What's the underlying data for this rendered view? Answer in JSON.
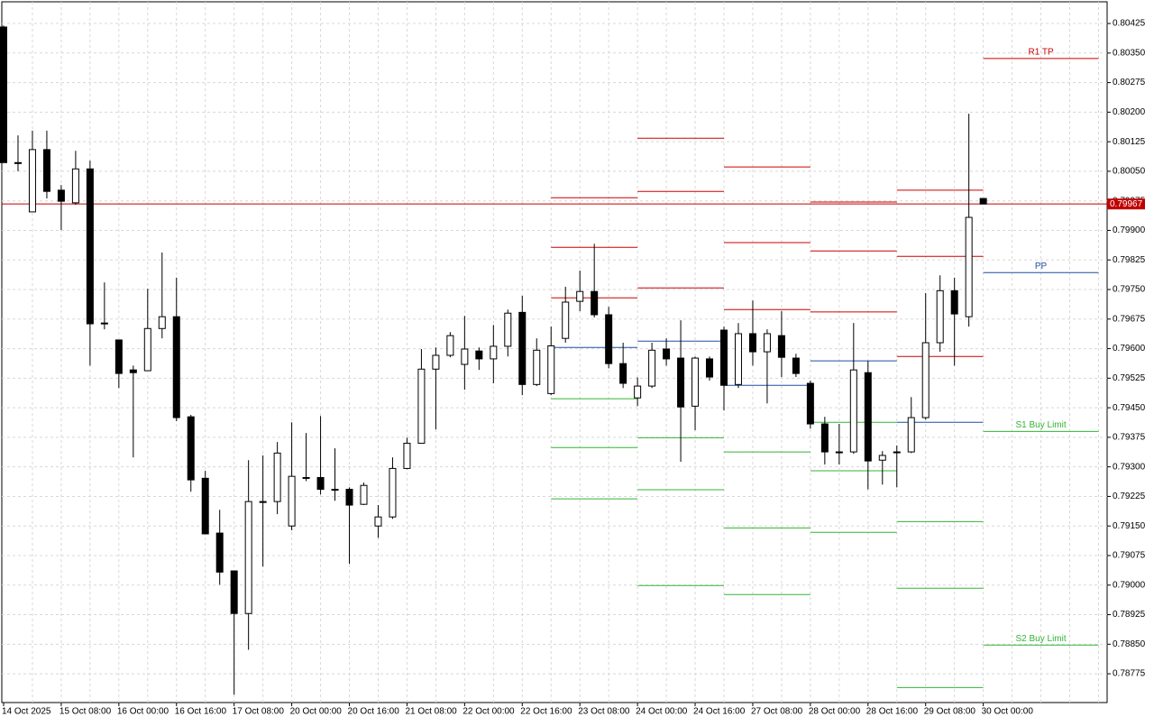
{
  "chart_data": {
    "type": "candlestick",
    "categories": [
      "14 Oct 2025",
      null,
      null,
      null,
      "15 Oct 08:00",
      null,
      null,
      null,
      "16 Oct 00:00",
      null,
      null,
      null,
      "16 Oct 16:00",
      null,
      null,
      null,
      "17 Oct 08:00",
      null,
      null,
      null,
      "20 Oct 00:00",
      null,
      null,
      null,
      "20 Oct 16:00",
      null,
      null,
      null,
      "21 Oct 08:00",
      null,
      null,
      null,
      "22 Oct 00:00",
      null,
      null,
      null,
      "22 Oct 16:00",
      null,
      null,
      null,
      "23 Oct 08:00",
      null,
      null,
      null,
      "24 Oct 00:00",
      null,
      null,
      null,
      "24 Oct 16:00",
      null,
      null,
      null,
      "27 Oct 08:00",
      null,
      null,
      null,
      "28 Oct 00:00",
      null,
      null,
      null,
      "28 Oct 16:00",
      null,
      null,
      null,
      "29 Oct 08:00",
      null,
      null,
      null,
      "30 Oct 00:00"
    ],
    "open": [
      0.80416,
      0.80072,
      0.79947,
      0.80105,
      0.80002,
      0.7997,
      0.80056,
      0.79665,
      0.79622,
      0.79546,
      0.79544,
      0.79651,
      0.79681,
      0.79427,
      0.79271,
      0.79132,
      0.79036,
      0.78928,
      0.79212,
      0.79212,
      0.7915,
      0.79273,
      0.79273,
      0.79243,
      0.79243,
      0.79205,
      0.7915,
      0.79173,
      0.79296,
      0.7936,
      0.79548,
      0.79583,
      0.7956,
      0.79594,
      0.79574,
      0.79606,
      0.79692,
      0.79509,
      0.79486,
      0.79626,
      0.7972,
      0.79745,
      0.79686,
      0.79562,
      0.79475,
      0.79505,
      0.79599,
      0.79576,
      0.79454,
      0.79574,
      0.79647,
      0.79509,
      0.79638,
      0.79592,
      0.79633,
      0.79576,
      0.79512,
      0.79409,
      0.79338,
      0.79338,
      0.79539,
      0.79317,
      0.79338,
      0.79338,
      0.79425,
      0.79615,
      0.79747,
      0.79681,
      0.79981
    ],
    "high": [
      0.8042,
      0.80141,
      0.80153,
      0.80153,
      0.80015,
      0.80102,
      0.80077,
      0.79768,
      0.79622,
      0.79557,
      0.79752,
      0.79844,
      0.7978,
      0.79432,
      0.7929,
      0.79191,
      0.79036,
      0.79317,
      0.79329,
      0.79363,
      0.79413,
      0.79386,
      0.79429,
      0.79347,
      0.79248,
      0.7926,
      0.79203,
      0.79324,
      0.79374,
      0.79599,
      0.79603,
      0.79642,
      0.79683,
      0.79603,
      0.7966,
      0.79699,
      0.79734,
      0.79626,
      0.79656,
      0.79757,
      0.79798,
      0.79866,
      0.79706,
      0.79615,
      0.79527,
      0.79615,
      0.79626,
      0.79672,
      0.7958,
      0.7958,
      0.79656,
      0.79665,
      0.79722,
      0.79649,
      0.79695,
      0.79587,
      0.79519,
      0.79427,
      0.79409,
      0.79665,
      0.79569,
      0.7934,
      0.79354,
      0.79477,
      0.79741,
      0.79786,
      0.7978,
      0.80196,
      0.79981
    ],
    "low": [
      0.80072,
      0.8005,
      0.79947,
      0.79981,
      0.79901,
      0.79965,
      0.79557,
      0.79649,
      0.795,
      0.79324,
      0.79544,
      0.79626,
      0.79416,
      0.79237,
      0.7913,
      0.79001,
      0.78722,
      0.78836,
      0.79047,
      0.7918,
      0.79139,
      0.79264,
      0.7923,
      0.79214,
      0.79054,
      0.79203,
      0.7912,
      0.79168,
      0.79294,
      0.7936,
      0.79395,
      0.79578,
      0.79496,
      0.79546,
      0.79512,
      0.7958,
      0.79482,
      0.79505,
      0.79482,
      0.79615,
      0.79695,
      0.79679,
      0.7955,
      0.795,
      0.79454,
      0.795,
      0.79557,
      0.79313,
      0.79393,
      0.79519,
      0.79443,
      0.795,
      0.79557,
      0.79461,
      0.79528,
      0.79528,
      0.79397,
      0.79306,
      0.79306,
      0.79333,
      0.79243,
      0.79255,
      0.79248,
      0.79335,
      0.7942,
      0.79592,
      0.79557,
      0.79656,
      0.79967
    ],
    "close": [
      0.80072,
      0.80072,
      0.80105,
      0.79999,
      0.79974,
      0.80056,
      0.79663,
      0.79665,
      0.79537,
      0.79539,
      0.79651,
      0.79681,
      0.79425,
      0.79267,
      0.7913,
      0.79033,
      0.78928,
      0.79212,
      0.79212,
      0.79335,
      0.79276,
      0.79273,
      0.79243,
      0.79243,
      0.79203,
      0.79253,
      0.79173,
      0.79296,
      0.7936,
      0.79548,
      0.79583,
      0.79633,
      0.79599,
      0.79574,
      0.79606,
      0.7969,
      0.79509,
      0.79596,
      0.79607,
      0.79718,
      0.79745,
      0.79686,
      0.79562,
      0.79512,
      0.79505,
      0.79596,
      0.79574,
      0.79452,
      0.79576,
      0.79528,
      0.79507,
      0.79638,
      0.79592,
      0.79638,
      0.79578,
      0.79537,
      0.79409,
      0.79338,
      0.79338,
      0.79546,
      0.79315,
      0.79329,
      0.79338,
      0.79425,
      0.79615,
      0.79747,
      0.79688,
      0.79933,
      0.79967
    ],
    "up_color": "#ffffff",
    "down_color": "#000000",
    "ylim": [
      0.78702,
      0.8048
    ],
    "yticks": [
      0.80425,
      {
        "value": 0.8035,
        "label": "0.80350"
      },
      0.80275,
      {
        "value": 0.802,
        "label": "0.80200"
      },
      0.80125,
      {
        "value": 0.8005,
        "label": "0.80050"
      },
      0.79975,
      {
        "value": 0.799,
        "label": "0.79900"
      },
      0.79825,
      {
        "value": 0.7975,
        "label": "0.79750"
      },
      0.79675,
      {
        "value": 0.796,
        "label": "0.79600"
      },
      0.79525,
      {
        "value": 0.7945,
        "label": "0.79450"
      },
      0.79375,
      {
        "value": 0.793,
        "label": "0.79300"
      },
      0.79225,
      {
        "value": 0.7915,
        "label": "0.79150"
      },
      0.79075,
      {
        "value": 0.79,
        "label": "0.79000"
      },
      0.78925,
      {
        "value": 0.7885,
        "label": "0.78850"
      },
      0.78775
    ],
    "grid": true,
    "last_price": 0.79967,
    "last_price_color": "#c00000",
    "resistance_color": "#cc0000",
    "pivot_color": "#1f4fa0",
    "support_color": "#33b533",
    "pivots": [
      {
        "resistance": [
          0.79983,
          0.79857,
          0.79729
        ],
        "pivot": 0.79603,
        "support": [
          0.79473,
          0.79349,
          0.79219
        ]
      },
      {
        "resistance": [
          0.80134,
          0.79999,
          0.79754
        ],
        "pivot": 0.79619,
        "support": [
          0.79374,
          0.79242,
          0.78999
        ]
      },
      {
        "resistance": [
          0.80061,
          0.79869,
          0.79699
        ],
        "pivot": 0.79507,
        "support": [
          0.79338,
          0.79145,
          0.78976
        ]
      },
      {
        "resistance": [
          0.79972,
          0.79848,
          0.79693
        ],
        "pivot": 0.79569,
        "support": [
          0.79413,
          0.7929,
          0.79134
        ]
      },
      {
        "resistance": [
          0.80002,
          0.79834,
          0.7958
        ],
        "pivot": 0.79413,
        "support": [
          0.79161,
          0.78992,
          0.7874
        ]
      }
    ],
    "targets": [
      {
        "label": "R1 TP",
        "value": 0.80336,
        "color": "#cc0000"
      },
      {
        "label": "PP",
        "value": 0.79793,
        "color": "#1f4fa0"
      },
      {
        "label": "S1 Buy Limit",
        "value": 0.7939,
        "color": "#33b533"
      },
      {
        "label": "S2 Buy Limit",
        "value": 0.78848,
        "color": "#33b533"
      }
    ]
  }
}
